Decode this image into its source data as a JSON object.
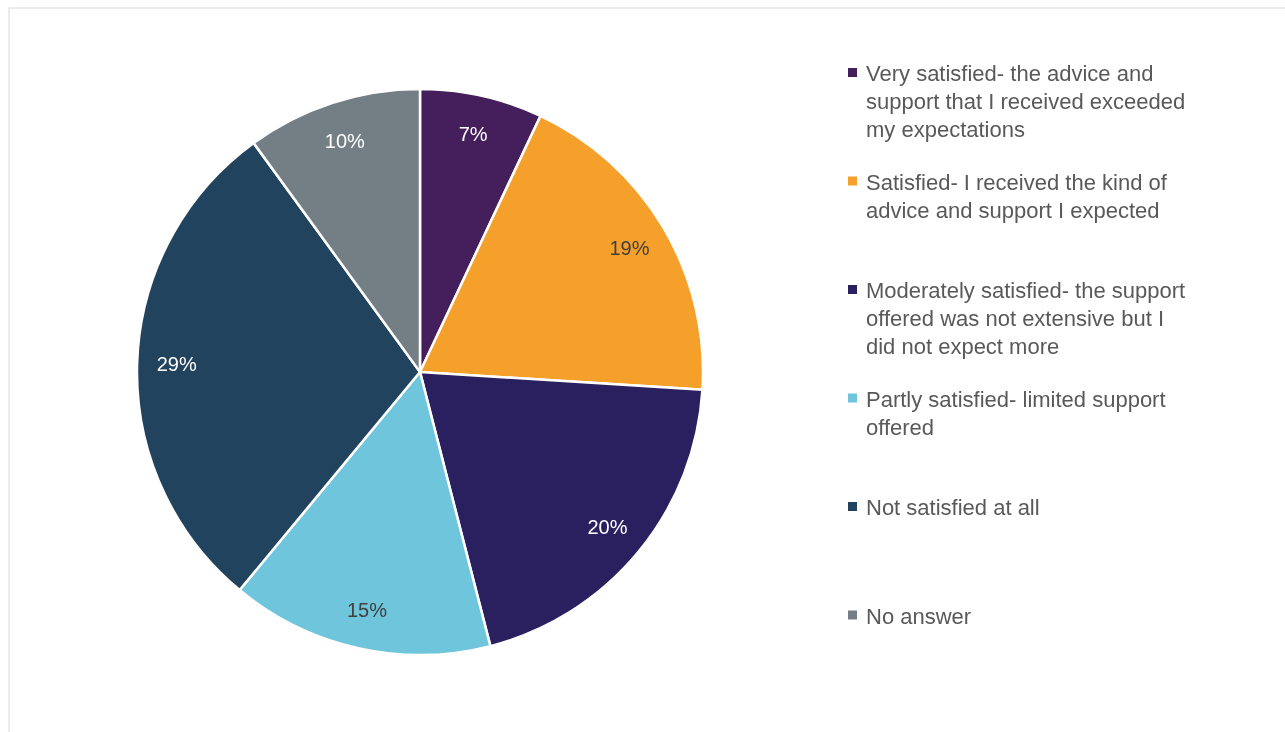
{
  "chart_data": {
    "type": "pie",
    "categories": [
      "Very satisfied- the advice and support that I received exceeded my expectations",
      "Satisfied- I received the kind of advice and support I expected",
      "Moderately satisfied- the support offered was not extensive but I did not expect more",
      "Partly satisfied- limited support offered",
      "Not satisfied at all",
      "No answer"
    ],
    "values": [
      7,
      19,
      20,
      15,
      29,
      10
    ],
    "value_labels": [
      "7%",
      "19%",
      "20%",
      "15%",
      "29%",
      "10%"
    ],
    "colors": [
      "#441f5b",
      "#f5a02a",
      "#2a2060",
      "#6fc5db",
      "#22435e",
      "#737f84"
    ],
    "legend": "right"
  }
}
